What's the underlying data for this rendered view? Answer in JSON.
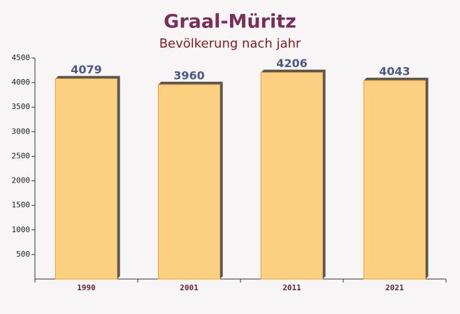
{
  "chart_data": {
    "type": "bar",
    "title": "Graal-Müritz",
    "subtitle": "Bevölkerung nach jahr",
    "categories": [
      "1990",
      "2001",
      "2011",
      "2021"
    ],
    "values": [
      4079,
      3960,
      4206,
      4043
    ],
    "color": "#fcc96b",
    "ylim": [
      0,
      4500
    ],
    "yticks": [
      500,
      1000,
      1500,
      2000,
      2500,
      3000,
      3500,
      4000,
      4500
    ]
  }
}
